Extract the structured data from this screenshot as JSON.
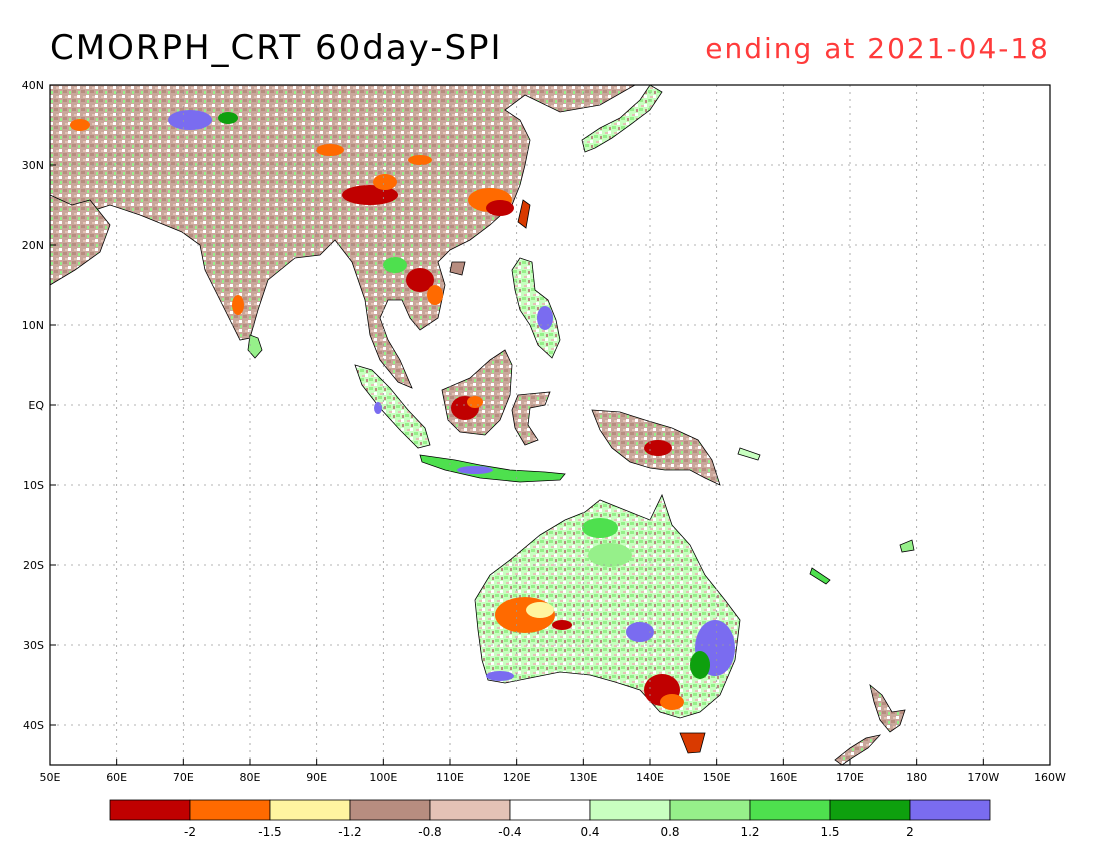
{
  "title": "CMORPH_CRT 60day-SPI",
  "subtitle": "ending at 2021-04-18",
  "colors": {
    "title": "#000000",
    "subtitle": "#ff3b3b",
    "coast": "#000000",
    "grid": "#9a9a9a"
  },
  "map": {
    "lon_ticks": [
      "50E",
      "60E",
      "70E",
      "80E",
      "90E",
      "100E",
      "110E",
      "120E",
      "130E",
      "140E",
      "150E",
      "160E",
      "170E",
      "180",
      "170W",
      "160W"
    ],
    "lat_ticks": [
      "40N",
      "30N",
      "20N",
      "10N",
      "EQ",
      "10S",
      "20S",
      "30S",
      "40S"
    ]
  },
  "colorbar": {
    "colors": [
      "#c00000",
      "#ff6a00",
      "#fff5a0",
      "#b78d80",
      "#e4c2b6",
      "#ffffff",
      "#c8ffc0",
      "#96f08a",
      "#4ee04e",
      "#0ea00e",
      "#7a6cf0"
    ],
    "labels": [
      "-2",
      "-1.5",
      "-1.2",
      "-0.8",
      "-0.4",
      "0.4",
      "0.8",
      "1.2",
      "1.5",
      "2"
    ]
  }
}
